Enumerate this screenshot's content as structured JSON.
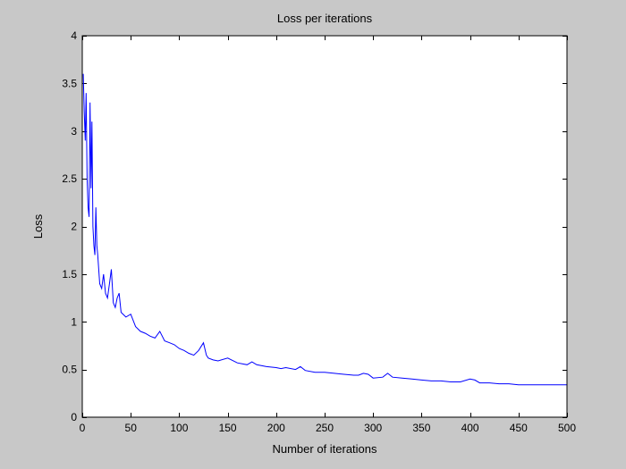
{
  "colors": {
    "figure_background": "#c8c8c8",
    "plot_background": "#ffffff",
    "axis": "#000000",
    "series_line": "#0000ff"
  },
  "chart_data": {
    "type": "line",
    "title": "Loss per iterations",
    "xlabel": "Number of iterations",
    "ylabel": "Loss",
    "xlim": [
      0,
      500
    ],
    "ylim": [
      0,
      4
    ],
    "xticks": [
      0,
      50,
      100,
      150,
      200,
      250,
      300,
      350,
      400,
      450,
      500
    ],
    "yticks": [
      0,
      0.5,
      1,
      1.5,
      2,
      2.5,
      3,
      3.5,
      4
    ],
    "grid": false,
    "legend": null,
    "series": [
      {
        "color": "#0000ff",
        "x": [
          1,
          2,
          3,
          4,
          5,
          6,
          7,
          8,
          9,
          10,
          11,
          12,
          13,
          14,
          15,
          16,
          18,
          20,
          22,
          24,
          26,
          28,
          30,
          32,
          34,
          36,
          38,
          40,
          45,
          50,
          55,
          60,
          65,
          70,
          75,
          80,
          85,
          90,
          95,
          100,
          105,
          110,
          115,
          120,
          125,
          128,
          130,
          135,
          140,
          150,
          160,
          170,
          175,
          180,
          190,
          200,
          205,
          210,
          220,
          225,
          230,
          240,
          250,
          260,
          270,
          280,
          285,
          290,
          295,
          300,
          310,
          315,
          320,
          330,
          340,
          350,
          360,
          370,
          380,
          390,
          400,
          405,
          410,
          415,
          420,
          430,
          440,
          450,
          460,
          470,
          480,
          490,
          500
        ],
        "y": [
          3.6,
          3.2,
          2.9,
          3.4,
          2.5,
          2.2,
          2.1,
          3.3,
          2.4,
          3.1,
          2.0,
          1.8,
          1.7,
          2.2,
          1.8,
          1.7,
          1.4,
          1.35,
          1.5,
          1.3,
          1.25,
          1.4,
          1.55,
          1.2,
          1.15,
          1.25,
          1.3,
          1.1,
          1.05,
          1.08,
          0.95,
          0.9,
          0.88,
          0.85,
          0.83,
          0.9,
          0.8,
          0.78,
          0.76,
          0.72,
          0.7,
          0.67,
          0.65,
          0.7,
          0.78,
          0.65,
          0.62,
          0.6,
          0.59,
          0.62,
          0.57,
          0.55,
          0.58,
          0.55,
          0.53,
          0.52,
          0.51,
          0.52,
          0.5,
          0.53,
          0.49,
          0.47,
          0.47,
          0.46,
          0.45,
          0.44,
          0.44,
          0.46,
          0.45,
          0.41,
          0.42,
          0.46,
          0.42,
          0.41,
          0.4,
          0.39,
          0.38,
          0.38,
          0.37,
          0.37,
          0.4,
          0.39,
          0.36,
          0.36,
          0.36,
          0.35,
          0.35,
          0.34,
          0.34,
          0.34,
          0.34,
          0.34,
          0.34
        ]
      }
    ]
  }
}
